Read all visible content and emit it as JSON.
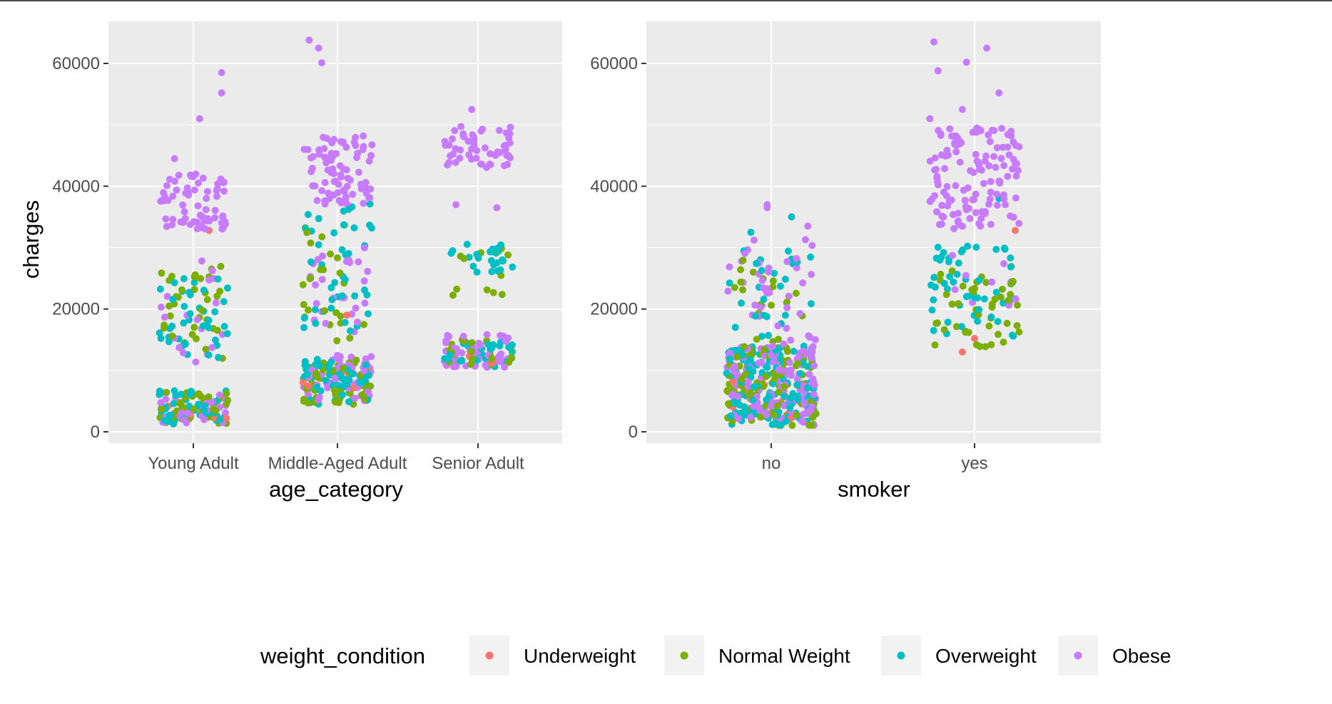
{
  "chart_data": [
    {
      "type": "scatter",
      "style": "jitter strip plot",
      "xlabel": "age_category",
      "ylabel": "charges",
      "categories": [
        "Young Adult",
        "Middle-Aged Adult",
        "Senior Adult"
      ],
      "ylim": [
        -2000,
        67000
      ],
      "yticks": [
        0,
        20000,
        40000,
        60000
      ],
      "grid": true,
      "clusters": [
        {
          "category": "Young Adult",
          "series": "Obese",
          "y_range": [
            33000,
            42000
          ],
          "count": 70,
          "spread": 0.11
        },
        {
          "category": "Young Adult",
          "series": "Obese",
          "y_range": [
            11000,
            28000
          ],
          "count": 18,
          "spread": 0.11
        },
        {
          "category": "Young Adult",
          "series": "Obese",
          "y_range": [
            1200,
            6000
          ],
          "count": 35,
          "spread": 0.11
        },
        {
          "category": "Young Adult",
          "series": "Normal Weight",
          "y_range": [
            11000,
            27000
          ],
          "count": 35,
          "spread": 0.11
        },
        {
          "category": "Young Adult",
          "series": "Normal Weight",
          "y_range": [
            1000,
            6500
          ],
          "count": 40,
          "spread": 0.11
        },
        {
          "category": "Young Adult",
          "series": "Overweight",
          "y_range": [
            12000,
            25000
          ],
          "count": 40,
          "spread": 0.11
        },
        {
          "category": "Young Adult",
          "series": "Overweight",
          "y_range": [
            1200,
            7000
          ],
          "count": 45,
          "spread": 0.11
        },
        {
          "category": "Young Adult",
          "series": "Underweight",
          "y_range": [
            1500,
            5000
          ],
          "count": 6,
          "spread": 0.11
        },
        {
          "category": "Middle-Aged Adult",
          "series": "Obese",
          "y_range": [
            37000,
            48500
          ],
          "count": 80,
          "spread": 0.11
        },
        {
          "category": "Middle-Aged Adult",
          "series": "Obese",
          "y_range": [
            16000,
            30000
          ],
          "count": 25,
          "spread": 0.11
        },
        {
          "category": "Middle-Aged Adult",
          "series": "Obese",
          "y_range": [
            5000,
            12500
          ],
          "count": 60,
          "spread": 0.11
        },
        {
          "category": "Middle-Aged Adult",
          "series": "Normal Weight",
          "y_range": [
            14000,
            35000
          ],
          "count": 25,
          "spread": 0.11
        },
        {
          "category": "Middle-Aged Adult",
          "series": "Normal Weight",
          "y_range": [
            4500,
            12000
          ],
          "count": 50,
          "spread": 0.11
        },
        {
          "category": "Middle-Aged Adult",
          "series": "Overweight",
          "y_range": [
            16000,
            38000
          ],
          "count": 40,
          "spread": 0.11
        },
        {
          "category": "Middle-Aged Adult",
          "series": "Overweight",
          "y_range": [
            4500,
            12000
          ],
          "count": 60,
          "spread": 0.11
        },
        {
          "category": "Middle-Aged Adult",
          "series": "Underweight",
          "y_range": [
            6000,
            10000
          ],
          "count": 5,
          "spread": 0.11
        },
        {
          "category": "Senior Adult",
          "series": "Obese",
          "y_range": [
            43000,
            50000
          ],
          "count": 55,
          "spread": 0.11
        },
        {
          "category": "Senior Adult",
          "series": "Obese",
          "y_range": [
            10500,
            16000
          ],
          "count": 55,
          "spread": 0.11
        },
        {
          "category": "Senior Adult",
          "series": "Normal Weight",
          "y_range": [
            22000,
            30000
          ],
          "count": 12,
          "spread": 0.11
        },
        {
          "category": "Senior Adult",
          "series": "Normal Weight",
          "y_range": [
            10500,
            15000
          ],
          "count": 25,
          "spread": 0.11
        },
        {
          "category": "Senior Adult",
          "series": "Overweight",
          "y_range": [
            26000,
            31000
          ],
          "count": 25,
          "spread": 0.11
        },
        {
          "category": "Senior Adult",
          "series": "Overweight",
          "y_range": [
            10500,
            15000
          ],
          "count": 30,
          "spread": 0.11
        },
        {
          "category": "Senior Adult",
          "series": "Underweight",
          "y_range": [
            10500,
            12500
          ],
          "count": 3,
          "spread": 0.11
        }
      ],
      "points": [
        {
          "category": "Young Adult",
          "series": "Obese",
          "x_offset": 0.02,
          "y": 51000
        },
        {
          "category": "Young Adult",
          "series": "Obese",
          "x_offset": 0.09,
          "y": 58500
        },
        {
          "category": "Young Adult",
          "series": "Obese",
          "x_offset": 0.09,
          "y": 55200
        },
        {
          "category": "Young Adult",
          "series": "Obese",
          "x_offset": -0.06,
          "y": 44500
        },
        {
          "category": "Young Adult",
          "series": "Underweight",
          "x_offset": 0.05,
          "y": 32800
        },
        {
          "category": "Middle-Aged Adult",
          "series": "Obese",
          "x_offset": -0.09,
          "y": 63800
        },
        {
          "category": "Middle-Aged Adult",
          "series": "Obese",
          "x_offset": -0.06,
          "y": 62500
        },
        {
          "category": "Middle-Aged Adult",
          "series": "Obese",
          "x_offset": -0.05,
          "y": 60100
        },
        {
          "category": "Middle-Aged Adult",
          "series": "Underweight",
          "x_offset": 0.03,
          "y": 19000
        },
        {
          "category": "Senior Adult",
          "series": "Obese",
          "x_offset": -0.02,
          "y": 52500
        },
        {
          "category": "Senior Adult",
          "series": "Obese",
          "x_offset": -0.07,
          "y": 37000
        },
        {
          "category": "Senior Adult",
          "series": "Obese",
          "x_offset": 0.06,
          "y": 36500
        }
      ]
    },
    {
      "type": "scatter",
      "style": "jitter strip plot",
      "xlabel": "smoker",
      "ylabel": "",
      "categories": [
        "no",
        "yes"
      ],
      "ylim": [
        -2000,
        67000
      ],
      "yticks": [
        0,
        20000,
        40000,
        60000
      ],
      "grid": true,
      "clusters": [
        {
          "category": "no",
          "series": "Obese",
          "y_range": [
            1000,
            14000
          ],
          "count": 140,
          "spread": 0.11
        },
        {
          "category": "no",
          "series": "Obese",
          "y_range": [
            14000,
            32000
          ],
          "count": 40,
          "spread": 0.11
        },
        {
          "category": "no",
          "series": "Normal Weight",
          "y_range": [
            1000,
            14000
          ],
          "count": 110,
          "spread": 0.11
        },
        {
          "category": "no",
          "series": "Normal Weight",
          "y_range": [
            14000,
            28000
          ],
          "count": 18,
          "spread": 0.11
        },
        {
          "category": "no",
          "series": "Overweight",
          "y_range": [
            1000,
            14000
          ],
          "count": 130,
          "spread": 0.11
        },
        {
          "category": "no",
          "series": "Overweight",
          "y_range": [
            15000,
            30000
          ],
          "count": 25,
          "spread": 0.11
        },
        {
          "category": "no",
          "series": "Underweight",
          "y_range": [
            1500,
            9000
          ],
          "count": 10,
          "spread": 0.11
        },
        {
          "category": "yes",
          "series": "Obese",
          "y_range": [
            33000,
            49500
          ],
          "count": 130,
          "spread": 0.11
        },
        {
          "category": "yes",
          "series": "Obese",
          "y_range": [
            20000,
            30000
          ],
          "count": 10,
          "spread": 0.11
        },
        {
          "category": "yes",
          "series": "Normal Weight",
          "y_range": [
            13500,
            27000
          ],
          "count": 45,
          "spread": 0.11
        },
        {
          "category": "yes",
          "series": "Overweight",
          "y_range": [
            15000,
            30500
          ],
          "count": 50,
          "spread": 0.11
        }
      ],
      "points": [
        {
          "category": "no",
          "series": "Obese",
          "x_offset": -0.01,
          "y": 37000
        },
        {
          "category": "no",
          "series": "Obese",
          "x_offset": -0.01,
          "y": 36500
        },
        {
          "category": "no",
          "series": "Overweight",
          "x_offset": 0.05,
          "y": 35000
        },
        {
          "category": "no",
          "series": "Obese",
          "x_offset": 0.09,
          "y": 33500
        },
        {
          "category": "no",
          "series": "Overweight",
          "x_offset": -0.05,
          "y": 32500
        },
        {
          "category": "yes",
          "series": "Obese",
          "x_offset": -0.1,
          "y": 63500
        },
        {
          "category": "yes",
          "series": "Obese",
          "x_offset": 0.03,
          "y": 62500
        },
        {
          "category": "yes",
          "series": "Obese",
          "x_offset": -0.02,
          "y": 60200
        },
        {
          "category": "yes",
          "series": "Obese",
          "x_offset": -0.09,
          "y": 58800
        },
        {
          "category": "yes",
          "series": "Obese",
          "x_offset": 0.06,
          "y": 55200
        },
        {
          "category": "yes",
          "series": "Obese",
          "x_offset": -0.03,
          "y": 52500
        },
        {
          "category": "yes",
          "series": "Obese",
          "x_offset": -0.11,
          "y": 51000
        },
        {
          "category": "yes",
          "series": "Underweight",
          "x_offset": 0.1,
          "y": 32800
        },
        {
          "category": "yes",
          "series": "Underweight",
          "x_offset": 0.0,
          "y": 15200
        },
        {
          "category": "yes",
          "series": "Underweight",
          "x_offset": -0.03,
          "y": 13000
        },
        {
          "category": "yes",
          "series": "Overweight",
          "x_offset": 0.06,
          "y": 38000
        }
      ]
    }
  ],
  "legend": {
    "title": "weight_condition",
    "placement": "bottom",
    "items": [
      {
        "label": "Underweight",
        "color": "#F8766D"
      },
      {
        "label": "Normal Weight",
        "color": "#7CAE00"
      },
      {
        "label": "Overweight",
        "color": "#00BFC4"
      },
      {
        "label": "Obese",
        "color": "#C77CFF"
      }
    ]
  },
  "colors": {
    "panel_background": "#EBEBEB",
    "grid": "#FFFFFF",
    "tick_text": "#4D4D4D",
    "tick_mark": "#333333"
  }
}
